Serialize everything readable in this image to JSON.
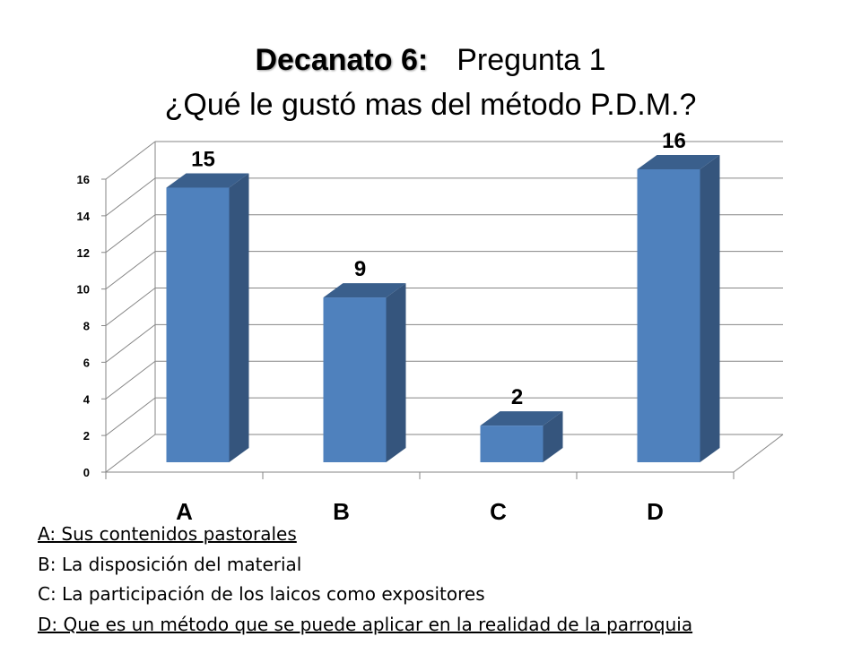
{
  "title": {
    "bold": "Decanato 6:",
    "rest": "Pregunta 1",
    "line2": "¿Qué le gustó mas del método P.D.M.?"
  },
  "colors": {
    "bar_front": "#4f81bd",
    "bar_side": "#35557d",
    "bar_top": "#3a5f8c",
    "gridline": "#868686"
  },
  "chart_data": {
    "type": "bar",
    "categories": [
      "A",
      "B",
      "C",
      "D"
    ],
    "values": [
      15,
      9,
      2,
      16
    ],
    "ylim": [
      0,
      16
    ],
    "yticks": [
      0,
      2,
      4,
      6,
      8,
      10,
      12,
      14,
      16
    ],
    "grid": true,
    "data_labels": true,
    "style": "3d-column"
  },
  "legend": [
    {
      "text": "A: Sus contenidos pastorales",
      "underlined": true
    },
    {
      "text": "B: La disposición del material",
      "underlined": false
    },
    {
      "text": "C: La participación de los laicos como expositores",
      "underlined": false
    },
    {
      "text": "D: Que es un método que se puede aplicar en la realidad de la parroquia",
      "underlined": true
    }
  ]
}
